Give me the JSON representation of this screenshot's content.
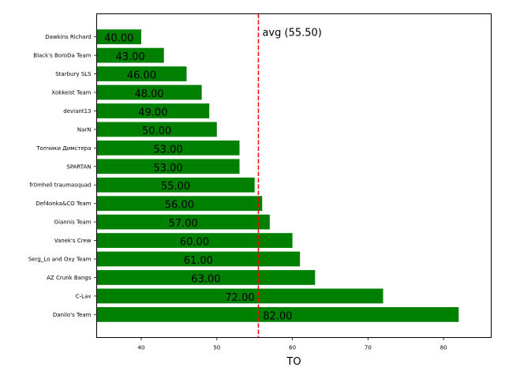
{
  "chart_data": {
    "type": "bar",
    "orientation": "horizontal",
    "categories": [
      "Danilo's Team",
      "C-Lav",
      "AZ Crunk Bangs",
      "Serg_Lo and Oxy Team",
      "Vanek's Crew",
      "Giannis Team",
      "Def4onka&CO Team",
      "fr0mhell traumasquad",
      "SPARTAN",
      "Топчики Димстера",
      "NarN",
      "deviant13",
      "Xokkeist Team",
      "Starbury SLS",
      "Black's BoroDa Team",
      "Dawkins Richard"
    ],
    "values": [
      82,
      72,
      63,
      61,
      60,
      57,
      56,
      55,
      53,
      53,
      50,
      49,
      48,
      46,
      43,
      40
    ],
    "value_labels": [
      "82.00",
      "72.00",
      "63.00",
      "61.00",
      "60.00",
      "57.00",
      "56.00",
      "55.00",
      "53.00",
      "53.00",
      "50.00",
      "49.00",
      "48.00",
      "46.00",
      "43.00",
      "40.00"
    ],
    "bar_color": "#008000",
    "xlabel": "TO",
    "ylabel": "",
    "title": "",
    "xlim": [
      34.1,
      86.3
    ],
    "xticks": [
      40,
      50,
      60,
      70,
      80
    ],
    "xtick_labels": [
      "40",
      "50",
      "60",
      "70",
      "80"
    ],
    "average": 55.5,
    "average_label": "avg (55.50)",
    "average_line_color": "#ff0000",
    "grid": false
  }
}
